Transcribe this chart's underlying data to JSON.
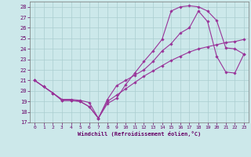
{
  "background_color": "#cce8ea",
  "grid_color": "#aacdd0",
  "line_color": "#993399",
  "marker_color": "#993399",
  "xlabel": "Windchill (Refroidissement éolien,°C)",
  "xlim": [
    -0.5,
    23.5
  ],
  "ylim": [
    17,
    28.5
  ],
  "yticks": [
    17,
    18,
    19,
    20,
    21,
    22,
    23,
    24,
    25,
    26,
    27,
    28
  ],
  "xticks": [
    0,
    1,
    2,
    3,
    4,
    5,
    6,
    7,
    8,
    9,
    10,
    11,
    12,
    13,
    14,
    15,
    16,
    17,
    18,
    19,
    20,
    21,
    22,
    23
  ],
  "series1_x": [
    0,
    1,
    2,
    3,
    4,
    5,
    6,
    7,
    8,
    9,
    10,
    11,
    12,
    13,
    14,
    15,
    16,
    17,
    18,
    19,
    20,
    21,
    22,
    23
  ],
  "series1_y": [
    21.0,
    20.4,
    19.8,
    19.1,
    19.1,
    19.0,
    18.5,
    17.4,
    18.8,
    19.3,
    20.6,
    21.7,
    22.8,
    23.8,
    24.9,
    27.6,
    28.0,
    28.1,
    28.0,
    27.6,
    26.7,
    24.1,
    24.0,
    23.5
  ],
  "series2_x": [
    0,
    1,
    2,
    3,
    4,
    5,
    6,
    7,
    8,
    9,
    10,
    11,
    12,
    13,
    14,
    15,
    16,
    17,
    18,
    19,
    20,
    21,
    22,
    23
  ],
  "series2_y": [
    21.0,
    20.4,
    19.8,
    19.1,
    19.1,
    19.0,
    18.5,
    17.4,
    19.2,
    20.5,
    21.0,
    21.5,
    22.0,
    22.8,
    23.8,
    24.5,
    25.5,
    26.0,
    27.6,
    26.6,
    23.3,
    21.8,
    21.7,
    23.5
  ],
  "series3_x": [
    0,
    1,
    2,
    3,
    4,
    5,
    6,
    7,
    8,
    9,
    10,
    11,
    12,
    13,
    14,
    15,
    16,
    17,
    18,
    19,
    20,
    21,
    22,
    23
  ],
  "series3_y": [
    21.0,
    20.4,
    19.8,
    19.2,
    19.2,
    19.1,
    18.9,
    17.4,
    19.0,
    19.6,
    20.2,
    20.8,
    21.4,
    21.9,
    22.4,
    22.9,
    23.3,
    23.7,
    24.0,
    24.2,
    24.4,
    24.6,
    24.7,
    24.9
  ]
}
